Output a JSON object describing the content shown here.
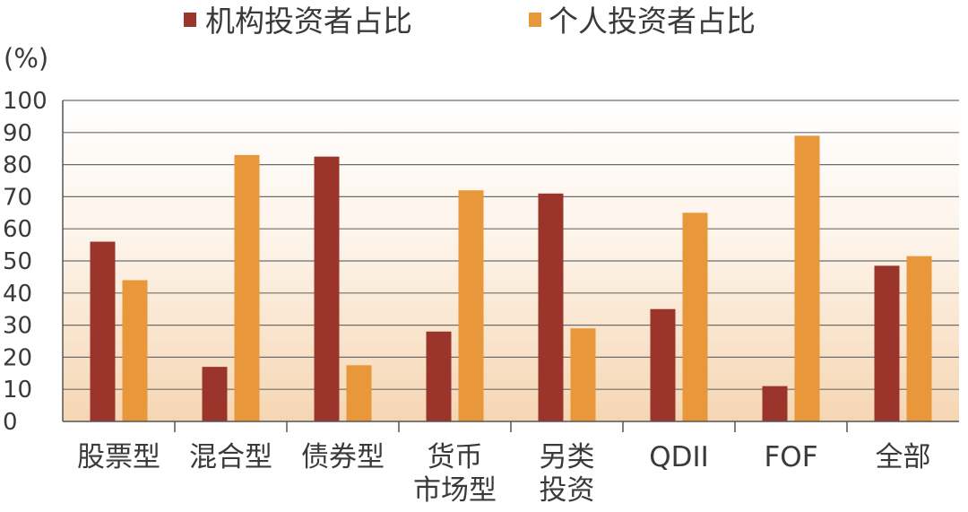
{
  "chart_data": {
    "type": "bar",
    "ylabel": "(%)",
    "ylim": [
      0,
      100
    ],
    "yticks": [
      0,
      10,
      20,
      30,
      40,
      50,
      60,
      70,
      80,
      90,
      100
    ],
    "grid": true,
    "legend_position": "top",
    "categories": [
      [
        "股票型"
      ],
      [
        "混合型"
      ],
      [
        "债券型"
      ],
      [
        "货币",
        "市场型"
      ],
      [
        "另类",
        "投资"
      ],
      [
        "QDII"
      ],
      [
        "FOF"
      ],
      [
        "全部"
      ]
    ],
    "series": [
      {
        "name": "机构投资者占比",
        "color": "#9b352b",
        "values": [
          56,
          17,
          82.5,
          28,
          71,
          35,
          11,
          48.5
        ]
      },
      {
        "name": "个人投资者占比",
        "color": "#e8973a",
        "values": [
          44,
          83,
          17.5,
          72,
          29,
          65,
          89,
          51.5
        ]
      }
    ]
  }
}
